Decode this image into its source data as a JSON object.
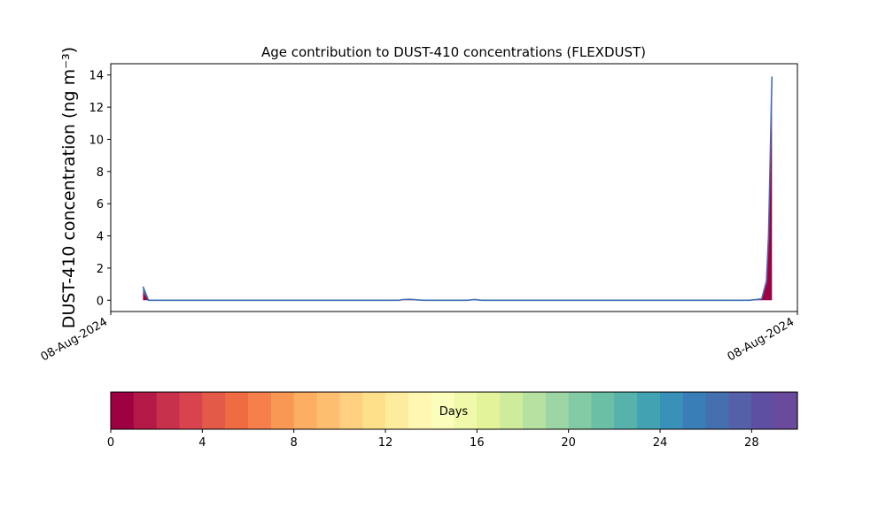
{
  "chart_data": {
    "type": "area",
    "title": "Age contribution to DUST-410 concentrations (FLEXDUST)",
    "ylabel": "DUST-410 concentration (ng m⁻³)",
    "xlabel": "",
    "x_tick_labels": [
      "08-Aug-2024",
      "08-Aug-2024"
    ],
    "ylim": [
      -0.7,
      14.7
    ],
    "y_ticks": [
      0,
      2,
      4,
      6,
      8,
      10,
      12,
      14
    ],
    "grid": false,
    "stack_profile": {
      "x": [
        0.0,
        0.047,
        0.055,
        0.42,
        0.425,
        0.435,
        0.455,
        0.52,
        0.53,
        0.54,
        0.93,
        0.94,
        0.948,
        0.955,
        0.958,
        0.96,
        0.962,
        0.963
      ],
      "total": [
        null,
        0.85,
        0.0,
        0.0,
        0.04,
        0.06,
        0.0,
        0.0,
        0.05,
        0.0,
        0.0,
        0.05,
        0.08,
        1.2,
        4.0,
        8.0,
        12.0,
        13.9
      ],
      "young_share": [
        null,
        0.6,
        0.5,
        0.5,
        0.6,
        0.6,
        0.5,
        0.5,
        0.6,
        0.5,
        0.5,
        0.7,
        0.7,
        0.85,
        0.9,
        0.9,
        0.87,
        0.87
      ]
    },
    "colorbar": {
      "label": "Days",
      "min": 0,
      "max": 30,
      "ticks": [
        0,
        4,
        8,
        12,
        16,
        20,
        24,
        28
      ],
      "colors": [
        "#9e0142",
        "#b41947",
        "#c8314c",
        "#d8434e",
        "#e45a48",
        "#ef6c43",
        "#f67f4b",
        "#f99755",
        "#fcae62",
        "#fdbf6f",
        "#fed07f",
        "#fee08b",
        "#feec9e",
        "#fff7b2",
        "#fbfdba",
        "#f0f9aa",
        "#e2f399",
        "#cfec9d",
        "#b6e1a1",
        "#9dd6a4",
        "#83cba5",
        "#6bbfa5",
        "#56b2ab",
        "#43a2b2",
        "#3990b8",
        "#3a7eb8",
        "#4470b0",
        "#5461a9",
        "#5e4fa2",
        "#6a4a9c"
      ]
    }
  }
}
